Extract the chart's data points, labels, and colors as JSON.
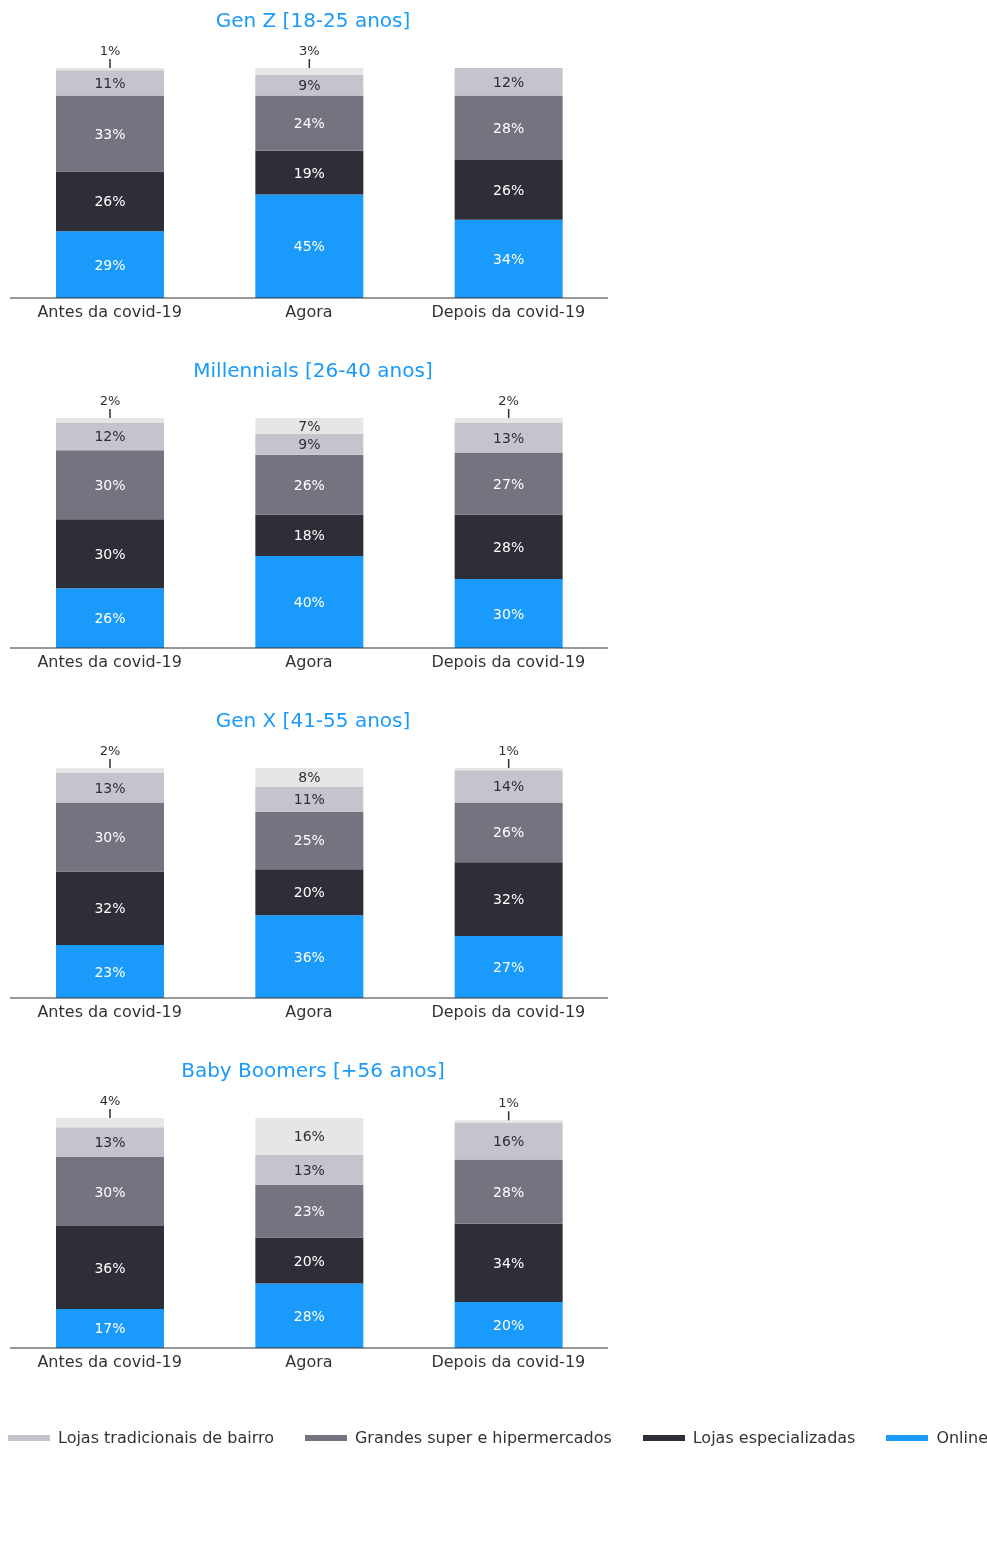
{
  "chart_data": [
    {
      "type": "bar",
      "title": "Gen Z [18-25 anos]",
      "categories": [
        "Antes da covid-19",
        "Agora",
        "Depois da covid-19"
      ],
      "stacked": true,
      "tick_labels": "x",
      "series": [
        {
          "color": "#1a9afa",
          "values": [
            29,
            45,
            34
          ],
          "value_labels": [
            "29%",
            "45%",
            "34%"
          ]
        },
        {
          "color": "#2e2e38",
          "values": [
            26,
            19,
            26
          ],
          "value_labels": [
            "26%",
            "19%",
            "26%"
          ]
        },
        {
          "color": "#747480",
          "values": [
            33,
            24,
            28
          ],
          "value_labels": [
            "33%",
            "24%",
            "28%"
          ]
        },
        {
          "color": "#c4c4cd",
          "values": [
            11,
            9,
            12
          ],
          "value_labels": [
            "11%",
            "9%",
            "12%"
          ]
        },
        {
          "color": "#e6e6e6",
          "values": [
            1,
            3,
            null
          ],
          "value_labels": [
            "1%",
            "3%",
            null
          ]
        }
      ]
    },
    {
      "type": "bar",
      "title": "Millennials [26-40 anos]",
      "categories": [
        "Antes da covid-19",
        "Agora",
        "Depois da covid-19"
      ],
      "stacked": true,
      "tick_labels": "x",
      "series": [
        {
          "color": "#1a9afa",
          "values": [
            26,
            40,
            30
          ],
          "value_labels": [
            "26%",
            "40%",
            "30%"
          ]
        },
        {
          "color": "#2e2e38",
          "values": [
            30,
            18,
            28
          ],
          "value_labels": [
            "30%",
            "18%",
            "28%"
          ]
        },
        {
          "color": "#747480",
          "values": [
            30,
            26,
            27
          ],
          "value_labels": [
            "30%",
            "26%",
            "27%"
          ]
        },
        {
          "color": "#c4c4cd",
          "values": [
            12,
            9,
            13
          ],
          "value_labels": [
            "12%",
            "9%",
            "13%"
          ]
        },
        {
          "color": "#e6e6e6",
          "values": [
            2,
            7,
            2
          ],
          "value_labels": [
            "2%",
            "7%",
            "2%"
          ]
        }
      ]
    },
    {
      "type": "bar",
      "title": "Gen X [41-55 anos]",
      "categories": [
        "Antes da covid-19",
        "Agora",
        "Depois da covid-19"
      ],
      "stacked": true,
      "tick_labels": "x",
      "series": [
        {
          "color": "#1a9afa",
          "values": [
            23,
            36,
            27
          ],
          "value_labels": [
            "23%",
            "36%",
            "27%"
          ]
        },
        {
          "color": "#2e2e38",
          "values": [
            32,
            20,
            32
          ],
          "value_labels": [
            "32%",
            "20%",
            "32%"
          ]
        },
        {
          "color": "#747480",
          "values": [
            30,
            25,
            26
          ],
          "value_labels": [
            "30%",
            "25%",
            "26%"
          ]
        },
        {
          "color": "#c4c4cd",
          "values": [
            13,
            11,
            14
          ],
          "value_labels": [
            "13%",
            "11%",
            "14%"
          ]
        },
        {
          "color": "#e6e6e6",
          "values": [
            2,
            8,
            1
          ],
          "value_labels": [
            "2%",
            "8%",
            "1%"
          ]
        }
      ]
    },
    {
      "type": "bar",
      "title": "Baby Boomers [+56 anos]",
      "categories": [
        "Antes da covid-19",
        "Agora",
        "Depois da covid-19"
      ],
      "stacked": true,
      "tick_labels": "x",
      "legend": "bottom",
      "series": [
        {
          "name": "Online",
          "color": "#1a9afa",
          "values": [
            17,
            28,
            20
          ],
          "value_labels": [
            "17%",
            "28%",
            "20%"
          ]
        },
        {
          "name": "Lojas especializadas",
          "color": "#2e2e38",
          "values": [
            36,
            20,
            34
          ],
          "value_labels": [
            "36%",
            "20%",
            "34%"
          ]
        },
        {
          "name": "Grandes super e hipermercados",
          "color": "#747480",
          "values": [
            30,
            23,
            28
          ],
          "value_labels": [
            "30%",
            "23%",
            "28%"
          ]
        },
        {
          "name": "Lojas tradicionais de bairro",
          "color": "#c4c4cd",
          "values": [
            13,
            13,
            16
          ],
          "value_labels": [
            "13%",
            "13%",
            "16%"
          ]
        },
        {
          "color": "#e6e6e6",
          "values": [
            4,
            16,
            1
          ],
          "value_labels": [
            "4%",
            "16%",
            "1%"
          ]
        }
      ]
    }
  ]
}
